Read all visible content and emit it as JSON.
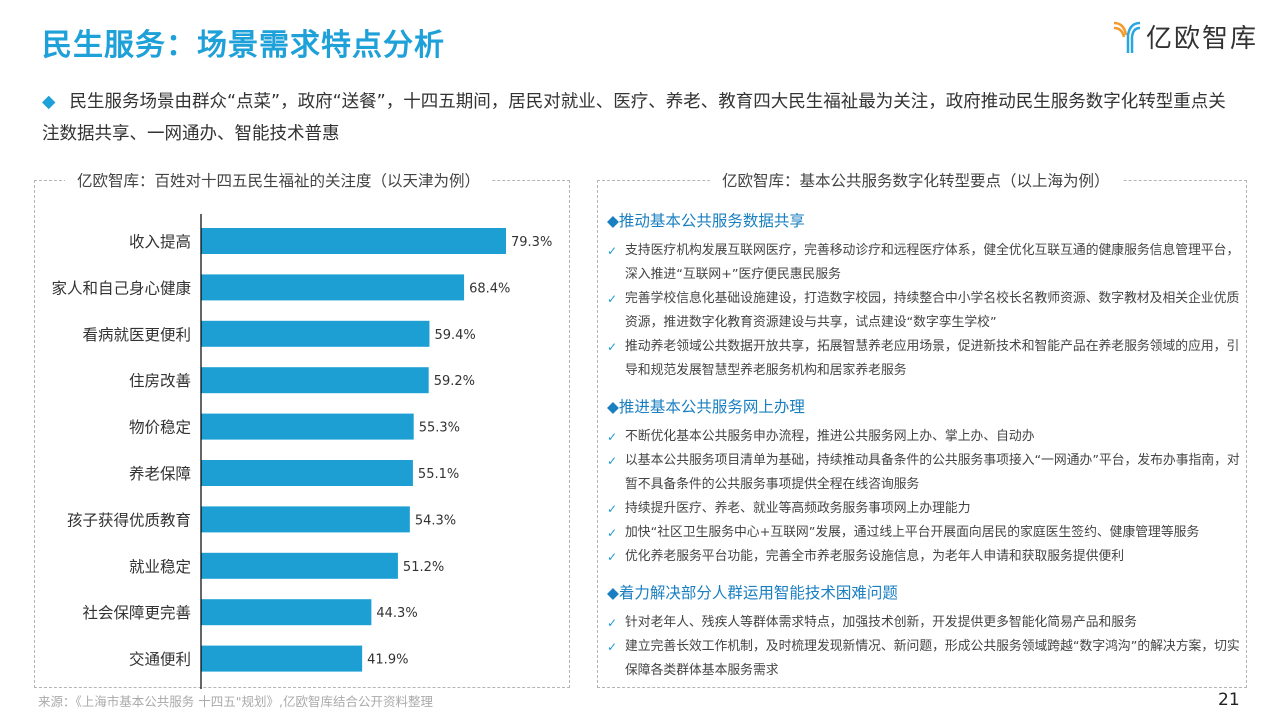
{
  "title": "民生服务：场景需求特点分析",
  "logo": {
    "text": "亿欧智库"
  },
  "summary": "民生服务场景由群众“点菜”，政府“送餐”，十四五期间，居民对就业、医疗、养老、教育四大民生福祉最为关注，政府推动民生服务数字化转型重点关注数据共享、一网通办、智能技术普惠",
  "colors": {
    "accent": "#1ea0d8",
    "bar": "#1e9fd4"
  },
  "chart_data": {
    "type": "bar",
    "orientation": "horizontal",
    "title": "亿欧智库：百姓对十四五民生福祉的关注度（以天津为例）",
    "categories": [
      "收入提高",
      "家人和自己身心健康",
      "看病就医更便利",
      "住房改善",
      "物价稳定",
      "养老保障",
      "孩子获得优质教育",
      "就业稳定",
      "社会保障更完善",
      "交通便利"
    ],
    "values": [
      79.3,
      68.4,
      59.4,
      59.2,
      55.3,
      55.1,
      54.3,
      51.2,
      44.3,
      41.9
    ],
    "labels": [
      "79.3%",
      "68.4%",
      "59.4%",
      "59.2%",
      "55.3%",
      "55.1%",
      "54.3%",
      "51.2%",
      "44.3%",
      "41.9%"
    ],
    "xlim": [
      0,
      100
    ],
    "grid": false
  },
  "right": {
    "title": "亿欧智库：基本公共服务数字化转型要点（以上海为例）",
    "sections": [
      {
        "heading": "◆推动基本公共服务数据共享",
        "items": [
          "支持医疗机构发展互联网医疗，完善移动诊疗和远程医疗体系，健全优化互联互通的健康服务信息管理平台，深入推进“互联网+”医疗便民惠民服务",
          "完善学校信息化基础设施建设，打造数字校园，持续整合中小学名校长名教师资源、数字教材及相关企业优质资源，推进数字化教育资源建设与共享，试点建设“数字孪生学校”",
          "推动养老领域公共数据开放共享，拓展智慧养老应用场景，促进新技术和智能产品在养老服务领域的应用，引导和规范发展智慧型养老服务机构和居家养老服务"
        ]
      },
      {
        "heading": "◆推进基本公共服务网上办理",
        "items": [
          "不断优化基本公共服务申办流程，推进公共服务网上办、掌上办、自动办",
          "以基本公共服务项目清单为基础，持续推动具备条件的公共服务事项接入“一网通办”平台，发布办事指南，对暂不具备条件的公共服务事项提供全程在线咨询服务",
          "持续提升医疗、养老、就业等高频政务服务事项网上办理能力",
          "加快“社区卫生服务中心+互联网”发展，通过线上平台开展面向居民的家庭医生签约、健康管理等服务",
          "优化养老服务平台功能，完善全市养老服务设施信息，为老年人申请和获取服务提供便利"
        ]
      },
      {
        "heading": "◆着力解决部分人群运用智能技术困难问题",
        "items": [
          "针对老年人、残疾人等群体需求特点，加强技术创新，开发提供更多智能化简易产品和服务",
          "建立完善长效工作机制，及时梳理发现新情况、新问题，形成公共服务领域跨越“数字鸿沟”的解决方案，切实保障各类群体基本服务需求"
        ]
      }
    ]
  },
  "source": "来源：《上海市基本公共服务 十四五\"规划》,亿欧智库结合公开资料整理",
  "page_number": "21"
}
